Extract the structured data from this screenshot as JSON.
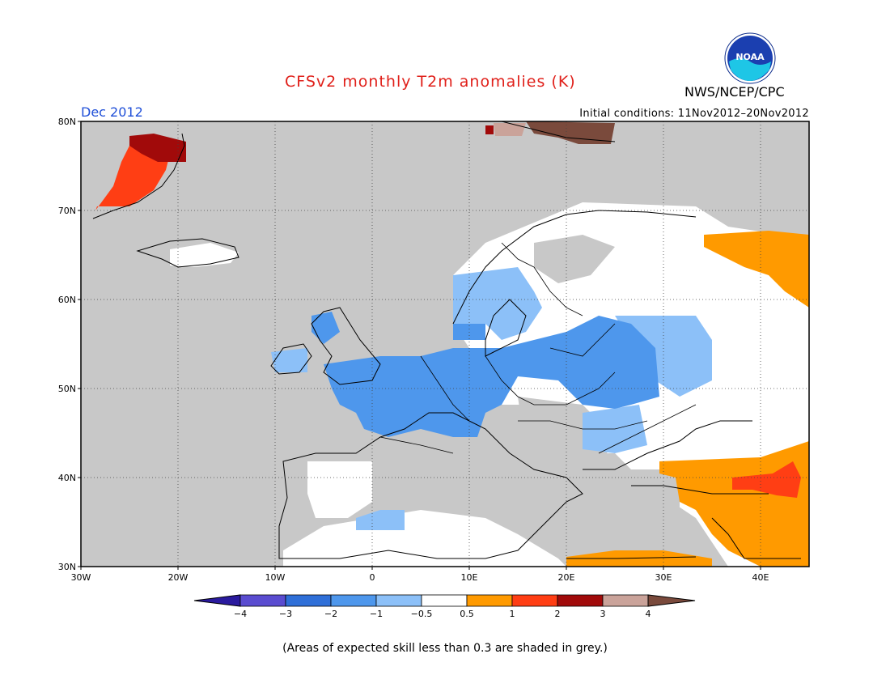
{
  "title": "CFSv2 monthly T2m anomalies (K)",
  "agency": "NWS/NCEP/CPC",
  "logo_text": "NOAA",
  "month": "Dec 2012",
  "initial_conditions": "Initial conditions: 11Nov2012–20Nov2012",
  "footnote": "(Areas of expected skill less than 0.3 are shaded in grey.)",
  "map": {
    "lat_labels": [
      "80N",
      "70N",
      "60N",
      "50N",
      "40N",
      "30N"
    ],
    "lon_labels": [
      "30W",
      "20W",
      "10W",
      "0",
      "10E",
      "20E",
      "30E",
      "40E"
    ]
  },
  "legend": {
    "tick_labels": [
      "−4",
      "−3",
      "−2",
      "−1",
      "−0.5",
      "0.5",
      "1",
      "2",
      "3",
      "4"
    ],
    "colors": [
      "#2a1a9e",
      "#5a4cd0",
      "#2f6fd8",
      "#4e97ec",
      "#8cc0f8",
      "#ffffff",
      "#ff9a00",
      "#ff3e14",
      "#a10a0a",
      "#caa39a",
      "#7a4a3c"
    ]
  },
  "colors": {
    "title": "#e0201a",
    "month": "#1f4fd8",
    "low_skill_grey": "#c8c8c8"
  }
}
